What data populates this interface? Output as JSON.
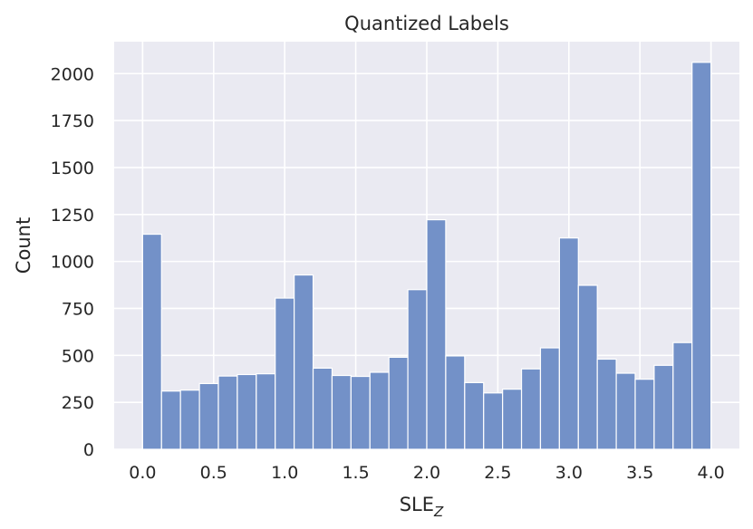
{
  "chart_data": {
    "type": "bar",
    "title": "Quantized Labels",
    "xlabel_main": "SLE",
    "xlabel_sub": "Z",
    "ylabel": "Count",
    "bin_start": 0.0,
    "bin_width": 0.1333,
    "values": [
      1145,
      310,
      315,
      350,
      390,
      398,
      402,
      805,
      928,
      432,
      393,
      388,
      410,
      490,
      850,
      1222,
      497,
      355,
      300,
      320,
      428,
      540,
      1125,
      873,
      480,
      405,
      373,
      447,
      568,
      2060
    ],
    "xlim": [
      -0.2,
      4.2
    ],
    "ylim": [
      0,
      2170
    ],
    "x_ticks": [
      0.0,
      0.5,
      1.0,
      1.5,
      2.0,
      2.5,
      3.0,
      3.5,
      4.0
    ],
    "x_tick_labels": [
      "0.0",
      "0.5",
      "1.0",
      "1.5",
      "2.0",
      "2.5",
      "3.0",
      "3.5",
      "4.0"
    ],
    "y_ticks": [
      0,
      250,
      500,
      750,
      1000,
      1250,
      1500,
      1750,
      2000
    ],
    "y_tick_labels": [
      "0",
      "250",
      "500",
      "750",
      "1000",
      "1250",
      "1500",
      "1750",
      "2000"
    ],
    "grid": true,
    "colors": {
      "bar": "#7391c8",
      "bar_edge": "#ffffff",
      "plot_bg": "#eaeaf2",
      "grid": "#ffffff",
      "text": "#262626"
    }
  }
}
